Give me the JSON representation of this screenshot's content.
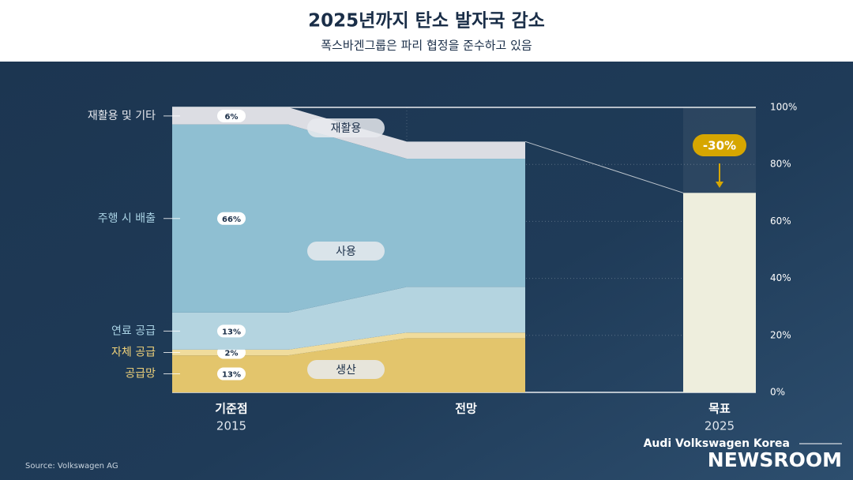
{
  "chart_data": {
    "type": "stacked-area",
    "title": "2025년까지 탄소 발자국 감소",
    "subtitle": "폭스바겐그룹은 파리 협정을 준수하고 있음",
    "categories": [
      "기준점",
      "전망",
      "목표"
    ],
    "category_years": [
      "2015",
      null,
      "2025"
    ],
    "series": [
      {
        "name": "재활용 및 기타",
        "color": "#dcdde3",
        "values": [
          6,
          6,
          null
        ],
        "value_labels": [
          "6%",
          null,
          null
        ]
      },
      {
        "name": "주행 시 배출",
        "color": "#8fbfd2",
        "values": [
          66,
          45,
          null
        ],
        "value_labels": [
          "66%",
          null,
          null
        ]
      },
      {
        "name": "연료 공급",
        "color": "#b4d4e0",
        "values": [
          13,
          16,
          null
        ],
        "value_labels": [
          "13%",
          null,
          null
        ]
      },
      {
        "name": "자체 공급",
        "color": "#f0dc9c",
        "values": [
          2,
          2,
          null
        ],
        "value_labels": [
          "2%",
          null,
          null
        ]
      },
      {
        "name": "공급망",
        "color": "#e3c56c",
        "values": [
          13,
          19,
          null
        ],
        "value_labels": [
          "13%",
          null,
          null
        ]
      }
    ],
    "group_labels": [
      "재활용",
      "사용",
      "생산"
    ],
    "target": {
      "value": 70,
      "color": "#eeeedd",
      "annotation": "-30%",
      "annotation_color": "#d6a600"
    },
    "ylim": [
      0,
      100
    ],
    "yticks": [
      {
        "value": 0,
        "label": "0%"
      },
      {
        "value": 20,
        "label": "20%"
      },
      {
        "value": 40,
        "label": "40%"
      },
      {
        "value": 60,
        "label": "60%"
      },
      {
        "value": 80,
        "label": "80%"
      },
      {
        "value": 100,
        "label": "100%"
      }
    ],
    "grid": true,
    "source": "Source: Volkswagen AG",
    "brand_line": "Audi Volkswagen Korea",
    "brand_name": "NEWSROOM"
  }
}
